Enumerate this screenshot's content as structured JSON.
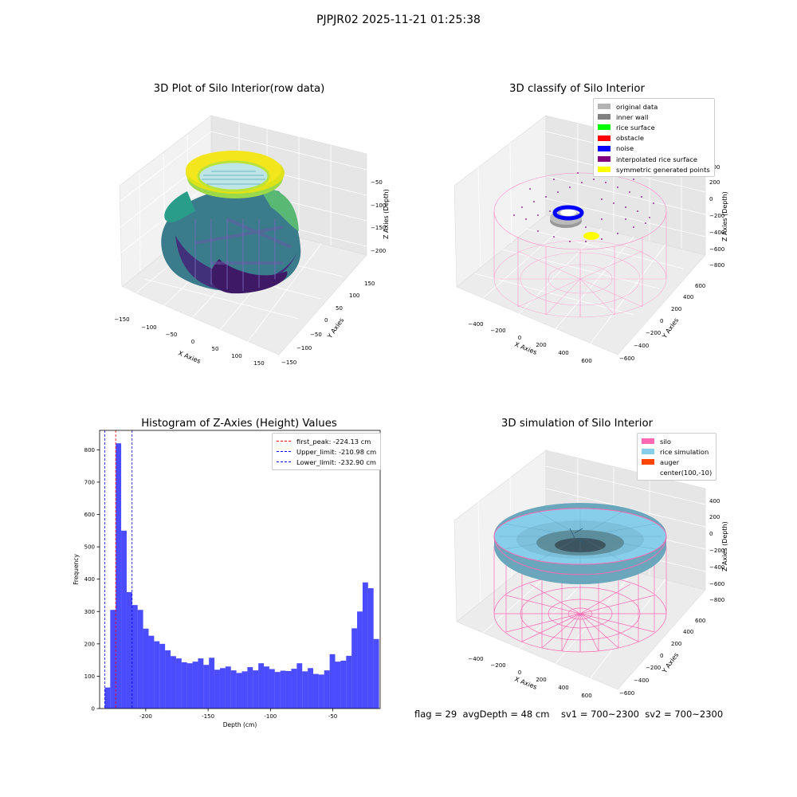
{
  "suptitle": "PJPJR02 2025-11-21 01:25:38",
  "panel1": {
    "title": "3D Plot of Silo Interior(row data)",
    "xlabel": "X Axies",
    "ylabel": "Y Axies",
    "zlabel": "Z Axies (Depth)",
    "xticks": [
      "−150",
      "−100",
      "−50",
      "0",
      "50",
      "100",
      "150"
    ],
    "yticks": [
      "150",
      "100",
      "50",
      "0",
      "−50",
      "−100",
      "−150"
    ],
    "zticks": [
      "−50",
      "−100",
      "−150",
      "−200"
    ]
  },
  "panel2": {
    "title": "3D classify of Silo Interior",
    "xlabel": "X Axies",
    "ylabel": "Y Axies",
    "zlabel": "Z Axies (Depth)",
    "xticks": [
      "−400",
      "−200",
      "0",
      "200",
      "400",
      "600"
    ],
    "yticks": [
      "600",
      "400",
      "200",
      "0",
      "−200",
      "−400",
      "−600"
    ],
    "zticks": [
      "200",
      "0",
      "−200",
      "−400",
      "−600",
      "−800"
    ],
    "zticks_top": "400",
    "legend": [
      {
        "label": "original data",
        "color": "#b3b3b3"
      },
      {
        "label": "inner wall",
        "color": "#808080"
      },
      {
        "label": "rice surface",
        "color": "#00ff00"
      },
      {
        "label": "obstacle",
        "color": "#ff0000"
      },
      {
        "label": "noise",
        "color": "#0000ff"
      },
      {
        "label": "interpolated rice surface",
        "color": "#800080"
      },
      {
        "label": "symmetric generated points",
        "color": "#ffff00"
      }
    ]
  },
  "panel4": {
    "title": "3D simulation of Silo Interior",
    "xlabel": "X Axies",
    "ylabel": "Y Axies",
    "zlabel": "Z Axies (Depth)",
    "xticks": [
      "−400",
      "−200",
      "0",
      "200",
      "400",
      "600"
    ],
    "yticks": [
      "600",
      "400",
      "200",
      "0",
      "−200",
      "−400",
      "−600"
    ],
    "zticks": [
      "400",
      "200",
      "0",
      "−200",
      "−400",
      "−600",
      "−800"
    ],
    "legend": [
      {
        "label": "silo",
        "color": "#ff69b4"
      },
      {
        "label": "rice simulation",
        "color": "#87ceeb"
      },
      {
        "label": "auger",
        "color": "#ff4500"
      },
      {
        "label": "center(100,-10)",
        "color": ""
      }
    ]
  },
  "bottom_info": "flag = 29  avgDepth = 48 cm    sv1 = 700~2300  sv2 = 700~2300",
  "chart_data": {
    "type": "bar",
    "title": "Histogram of Z-Axies (Height) Values",
    "xlabel": "Depth (cm)",
    "ylabel": "Frequency",
    "xlim": [
      -237,
      -12
    ],
    "ylim": [
      0,
      860
    ],
    "xticks": [
      -200,
      -150,
      -100,
      -50
    ],
    "yticks": [
      0,
      100,
      200,
      300,
      400,
      500,
      600,
      700,
      800
    ],
    "bar_color": "#0000ff",
    "bin_start": -232.9,
    "bin_width": 4.4,
    "values": [
      65,
      305,
      820,
      550,
      360,
      320,
      305,
      247,
      225,
      208,
      200,
      180,
      162,
      155,
      143,
      140,
      145,
      155,
      135,
      157,
      120,
      125,
      130,
      118,
      110,
      115,
      128,
      118,
      140,
      130,
      122,
      113,
      117,
      116,
      123,
      140,
      115,
      125,
      107,
      105,
      118,
      168,
      145,
      148,
      163,
      248,
      300,
      390,
      372,
      215
    ],
    "vlines": [
      {
        "label": "first_peak: -224.13 cm",
        "x": -224.13,
        "color": "#ff0000"
      },
      {
        "label": "Upper_limit: -210.98 cm",
        "x": -210.98,
        "color": "#0000ff"
      },
      {
        "label": "Lower_limit: -232.90 cm",
        "x": -232.9,
        "color": "#0000ff"
      }
    ],
    "legend_position": "upper right"
  }
}
